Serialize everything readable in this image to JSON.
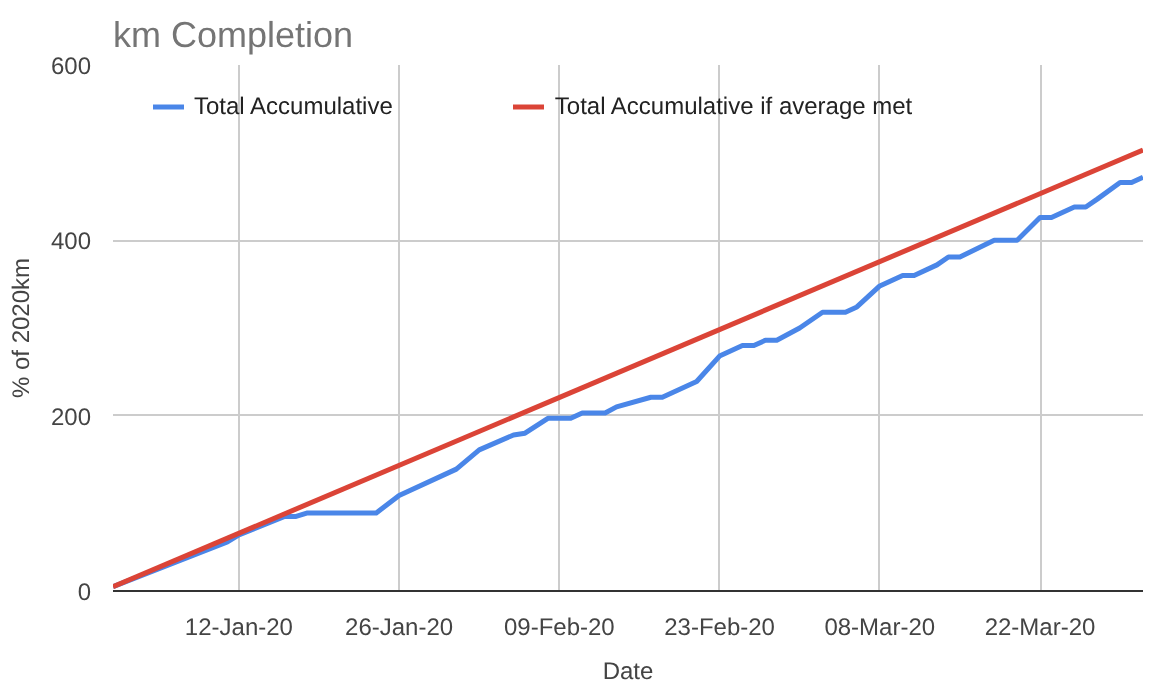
{
  "chart_data": {
    "type": "line",
    "title": "km Completion",
    "xlabel": "Date",
    "ylabel": "% of 2020km",
    "legend": "top",
    "grid": true,
    "marker": "none",
    "line_style": "solid",
    "xlim": [
      "2020-01-01",
      "2020-03-31"
    ],
    "xticks": [
      {
        "value": "2020-01-12",
        "label": "12-Jan-20"
      },
      {
        "value": "2020-01-26",
        "label": "26-Jan-20"
      },
      {
        "value": "2020-02-09",
        "label": "09-Feb-20"
      },
      {
        "value": "2020-02-23",
        "label": "23-Feb-20"
      },
      {
        "value": "2020-03-08",
        "label": "08-Mar-20"
      },
      {
        "value": "2020-03-22",
        "label": "22-Mar-20"
      }
    ],
    "ylim": [
      0,
      600
    ],
    "yticks": [
      0,
      200,
      400,
      600
    ],
    "series": [
      {
        "name": "Total Accumulative",
        "color": "#4a86e8",
        "x": [
          "2020-01-01",
          "2020-01-11",
          "2020-01-12",
          "2020-01-16",
          "2020-01-17",
          "2020-01-18",
          "2020-01-24",
          "2020-01-26",
          "2020-01-31",
          "2020-02-02",
          "2020-02-05",
          "2020-02-06",
          "2020-02-08",
          "2020-02-10",
          "2020-02-11",
          "2020-02-13",
          "2020-02-14",
          "2020-02-17",
          "2020-02-18",
          "2020-02-21",
          "2020-02-23",
          "2020-02-25",
          "2020-02-26",
          "2020-02-27",
          "2020-02-28",
          "2020-03-01",
          "2020-03-03",
          "2020-03-05",
          "2020-03-06",
          "2020-03-08",
          "2020-03-10",
          "2020-03-11",
          "2020-03-13",
          "2020-03-14",
          "2020-03-15",
          "2020-03-18",
          "2020-03-20",
          "2020-03-22",
          "2020-03-23",
          "2020-03-25",
          "2020-03-26",
          "2020-03-27",
          "2020-03-29",
          "2020-03-30",
          "2020-03-31"
        ],
        "values": [
          5,
          56,
          64,
          85,
          85,
          89,
          89,
          109,
          139,
          161,
          178,
          180,
          197,
          197,
          203,
          203,
          210,
          221,
          221,
          239,
          268,
          280,
          280,
          286,
          286,
          300,
          318,
          318,
          324,
          348,
          360,
          360,
          372,
          381,
          381,
          400,
          400,
          426,
          426,
          438,
          438,
          447,
          466,
          466,
          472
        ]
      },
      {
        "name": "Total Accumulative if average met",
        "color": "#db4437",
        "x": [
          "2020-01-01",
          "2020-03-31"
        ],
        "values": [
          5,
          503
        ]
      }
    ]
  }
}
